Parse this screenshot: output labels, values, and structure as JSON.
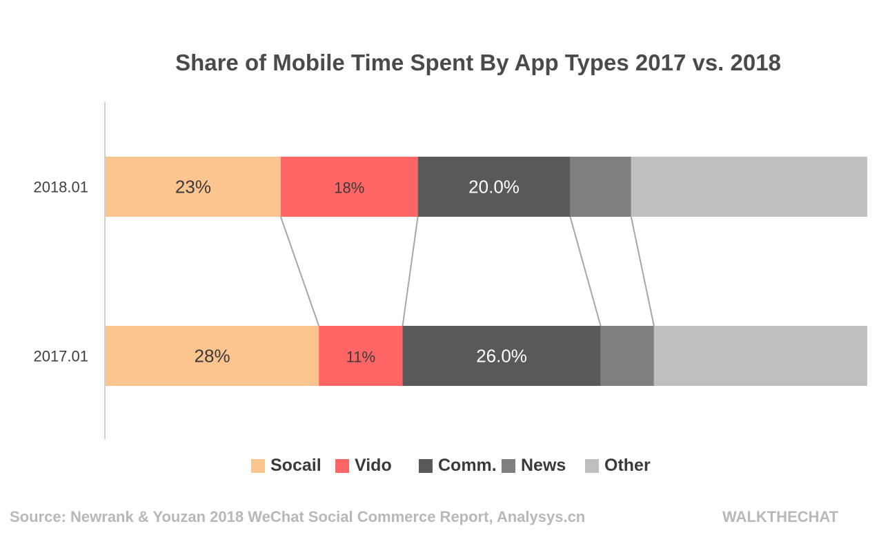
{
  "chart_data": {
    "type": "bar",
    "orientation": "horizontal",
    "stacked": true,
    "title": "Share of Mobile Time Spent By App Types 2017 vs. 2018",
    "categories": [
      "2018.01",
      "2017.01"
    ],
    "series": [
      {
        "name": "Socail",
        "values": [
          23,
          28
        ],
        "labels": [
          "23%",
          "28%"
        ],
        "color": "#fcc48f"
      },
      {
        "name": "Vido",
        "values": [
          18,
          11
        ],
        "labels": [
          "18%",
          "11%"
        ],
        "color": "#fe6666"
      },
      {
        "name": "Comm.",
        "values": [
          20,
          26
        ],
        "labels": [
          "20.0%",
          "26.0%"
        ],
        "color": "#595959"
      },
      {
        "name": "News",
        "values": [
          8,
          7
        ],
        "labels": [
          "",
          ""
        ],
        "color": "#7f7f7f"
      },
      {
        "name": "Other",
        "values": [
          31,
          28
        ],
        "labels": [
          "",
          ""
        ],
        "color": "#bfbfbf"
      }
    ],
    "xlim": [
      0,
      100
    ],
    "series_lines": true,
    "legend": "bottom"
  },
  "source": "Source: Newrank & Youzan 2018 WeChat Social Commerce Report, Analysys.cn",
  "brand": "WALKTHECHAT"
}
